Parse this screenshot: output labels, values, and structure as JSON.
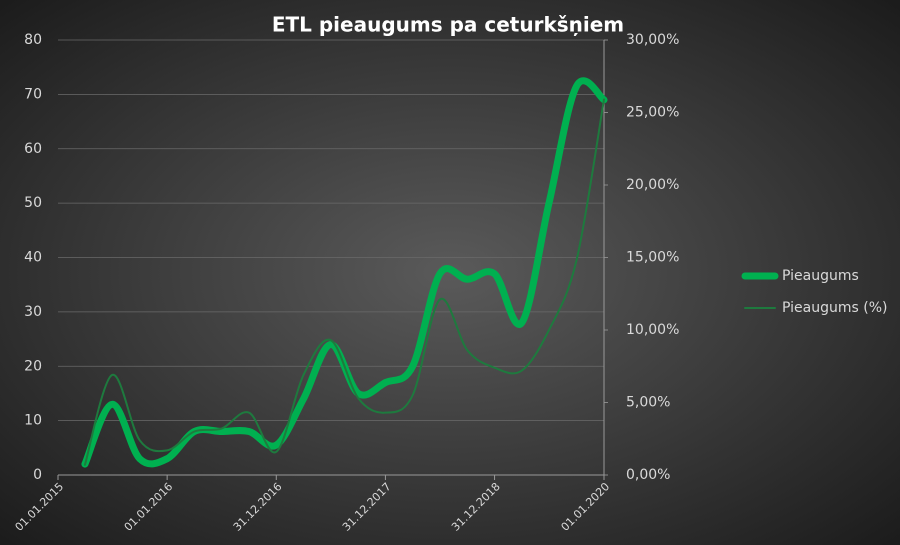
{
  "chart_data": {
    "type": "line",
    "title": "ETL pieaugums pa ceturkšņiem",
    "x": [
      "01.04.2015",
      "01.07.2015",
      "01.10.2015",
      "01.01.2016",
      "01.04.2016",
      "01.07.2016",
      "01.10.2016",
      "31.12.2016",
      "01.04.2017",
      "01.07.2017",
      "01.10.2017",
      "31.12.2017",
      "01.04.2018",
      "01.07.2018",
      "01.10.2018",
      "31.12.2018",
      "01.04.2019",
      "01.07.2019",
      "01.10.2019",
      "01.01.2020"
    ],
    "xlim": [
      "01.01.2015",
      "01.01.2020"
    ],
    "xticks": [
      "01.01.2015",
      "01.01.2016",
      "31.12.2016",
      "31.12.2017",
      "31.12.2018",
      "01.01.2020"
    ],
    "ylim": [
      0,
      80
    ],
    "yticks": [
      0,
      10,
      20,
      30,
      40,
      50,
      60,
      70,
      80
    ],
    "y2lim": [
      0,
      30
    ],
    "y2ticks": [
      {
        "value": 0,
        "label": "0,00%"
      },
      {
        "value": 5,
        "label": "5,00%"
      },
      {
        "value": 10,
        "label": "10,00%"
      },
      {
        "value": 15,
        "label": "15,00%"
      },
      {
        "value": 20,
        "label": "20,00%"
      },
      {
        "value": 25,
        "label": "25,00%"
      },
      {
        "value": 30,
        "label": "30,00%"
      }
    ],
    "grid": true,
    "legend": "right",
    "series": [
      {
        "name": "Pieaugums",
        "color": "#00b050",
        "width": 7,
        "values": [
          2,
          13,
          3,
          3,
          8,
          8,
          8,
          5.5,
          14,
          24,
          15,
          17,
          20,
          37,
          36,
          37,
          28,
          50,
          71.5,
          69
        ]
      },
      {
        "name": "Pieaugums (%)",
        "color": "#1e7a3e",
        "width": 2,
        "axis": "y2",
        "values": [
          0.7,
          6.9,
          2.4,
          1.7,
          3,
          3.2,
          4.3,
          1.6,
          6.9,
          9.3,
          5.3,
          4.3,
          5.5,
          12.1,
          8.6,
          7.4,
          7.2,
          10,
          14.8,
          25.9
        ]
      }
    ]
  }
}
